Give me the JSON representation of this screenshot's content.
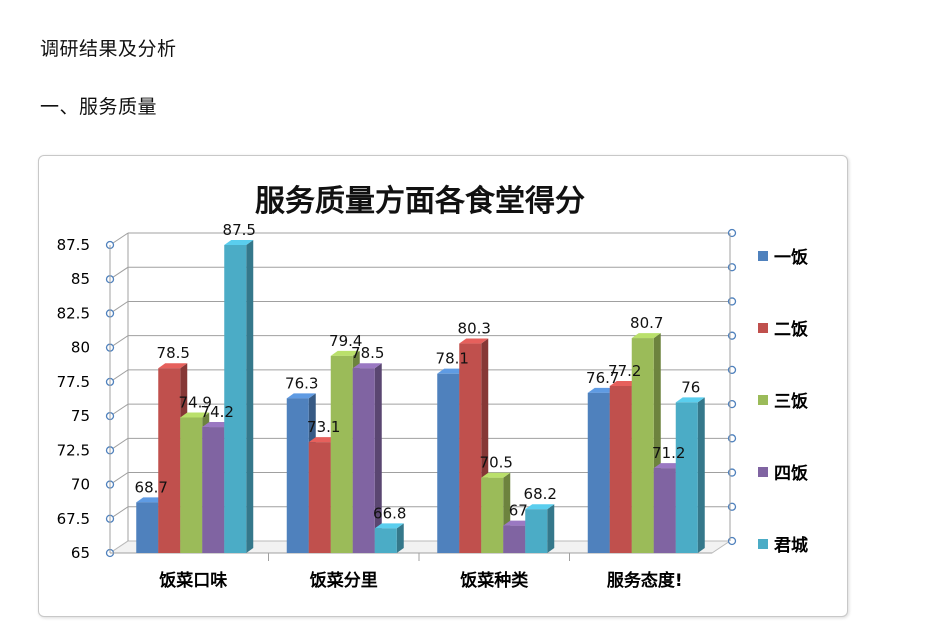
{
  "doc": {
    "heading1": "调研结果及分析",
    "heading2": "一、服务质量"
  },
  "chart_data": {
    "type": "bar",
    "title": "服务质量方面各食堂得分",
    "xlabel": "",
    "ylabel": "",
    "categories": [
      "饭菜口味",
      "饭菜分里",
      "饭菜种类",
      "服务态度!"
    ],
    "ylim": [
      65,
      87.5
    ],
    "yticks": [
      "65",
      "67.5",
      "70",
      "72.5",
      "75",
      "77.5",
      "80",
      "82.5",
      "85",
      "87.5"
    ],
    "grid": true,
    "legend_position": "right",
    "series": [
      {
        "name": "一饭",
        "color": "#4f81bd",
        "values": [
          68.7,
          76.3,
          78.1,
          76.7
        ]
      },
      {
        "name": "二饭",
        "color": "#c0504d",
        "values": [
          78.5,
          73.1,
          80.3,
          77.2
        ]
      },
      {
        "name": "三饭",
        "color": "#9bbb59",
        "values": [
          74.9,
          79.4,
          70.5,
          80.7
        ]
      },
      {
        "name": "四饭",
        "color": "#8064a2",
        "values": [
          74.2,
          78.5,
          67,
          71.2
        ]
      },
      {
        "name": "君城",
        "color": "#4bacc6",
        "values": [
          87.5,
          66.8,
          68.2,
          76
        ]
      }
    ],
    "data_labels": [
      [
        "68.7",
        "76.3",
        "78.1",
        "76.7"
      ],
      [
        "78.5",
        "73.1",
        "80.3",
        "77.2"
      ],
      [
        "74.9",
        "79.4",
        "70.5",
        "80.7"
      ],
      [
        "74.2",
        "78.5",
        "67",
        "71.2"
      ],
      [
        "87.5",
        "66.8",
        "68.2",
        "76"
      ]
    ]
  }
}
